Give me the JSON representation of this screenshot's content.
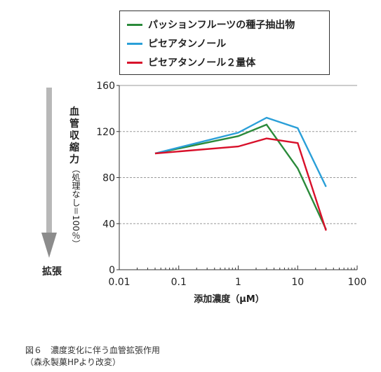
{
  "chart_data": {
    "type": "line",
    "x_scale": "log",
    "xlim": [
      0.01,
      100
    ],
    "ylim": [
      0,
      160
    ],
    "x_ticks": [
      0.01,
      0.1,
      1,
      10,
      100
    ],
    "x_tick_labels": [
      "0.01",
      "0.1",
      "1",
      "10",
      "100"
    ],
    "y_ticks": [
      0,
      40,
      80,
      120,
      160
    ],
    "y_tick_labels": [
      "0",
      "40",
      "80",
      "120",
      "160"
    ],
    "xlabel": "添加濃度（μM）",
    "ylabel": "血管収縮力",
    "ylabel_sub": "（処理なし＝100％）",
    "arrow_label": "拡張",
    "grid": "horizontal dashed",
    "legend_position": "top-right",
    "series": [
      {
        "name": "パッションフルーツの種子抽出物",
        "color": "#2a8a3a",
        "x": [
          0.04,
          1,
          3,
          10,
          30
        ],
        "y": [
          101,
          116,
          126,
          88,
          35
        ]
      },
      {
        "name": "ピセアタンノール",
        "color": "#2a9fd8",
        "x": [
          0.04,
          1,
          3,
          10,
          30
        ],
        "y": [
          101,
          119,
          132,
          123,
          72
        ]
      },
      {
        "name": "ピセアタンノール２量体",
        "color": "#d8102a",
        "x": [
          0.04,
          1,
          3,
          10,
          30
        ],
        "y": [
          101,
          107,
          114,
          110,
          34
        ]
      }
    ]
  },
  "caption": {
    "line1": "図６　濃度変化に伴う血管拡張作用",
    "line2": "（森永製菓HPより改変）"
  }
}
